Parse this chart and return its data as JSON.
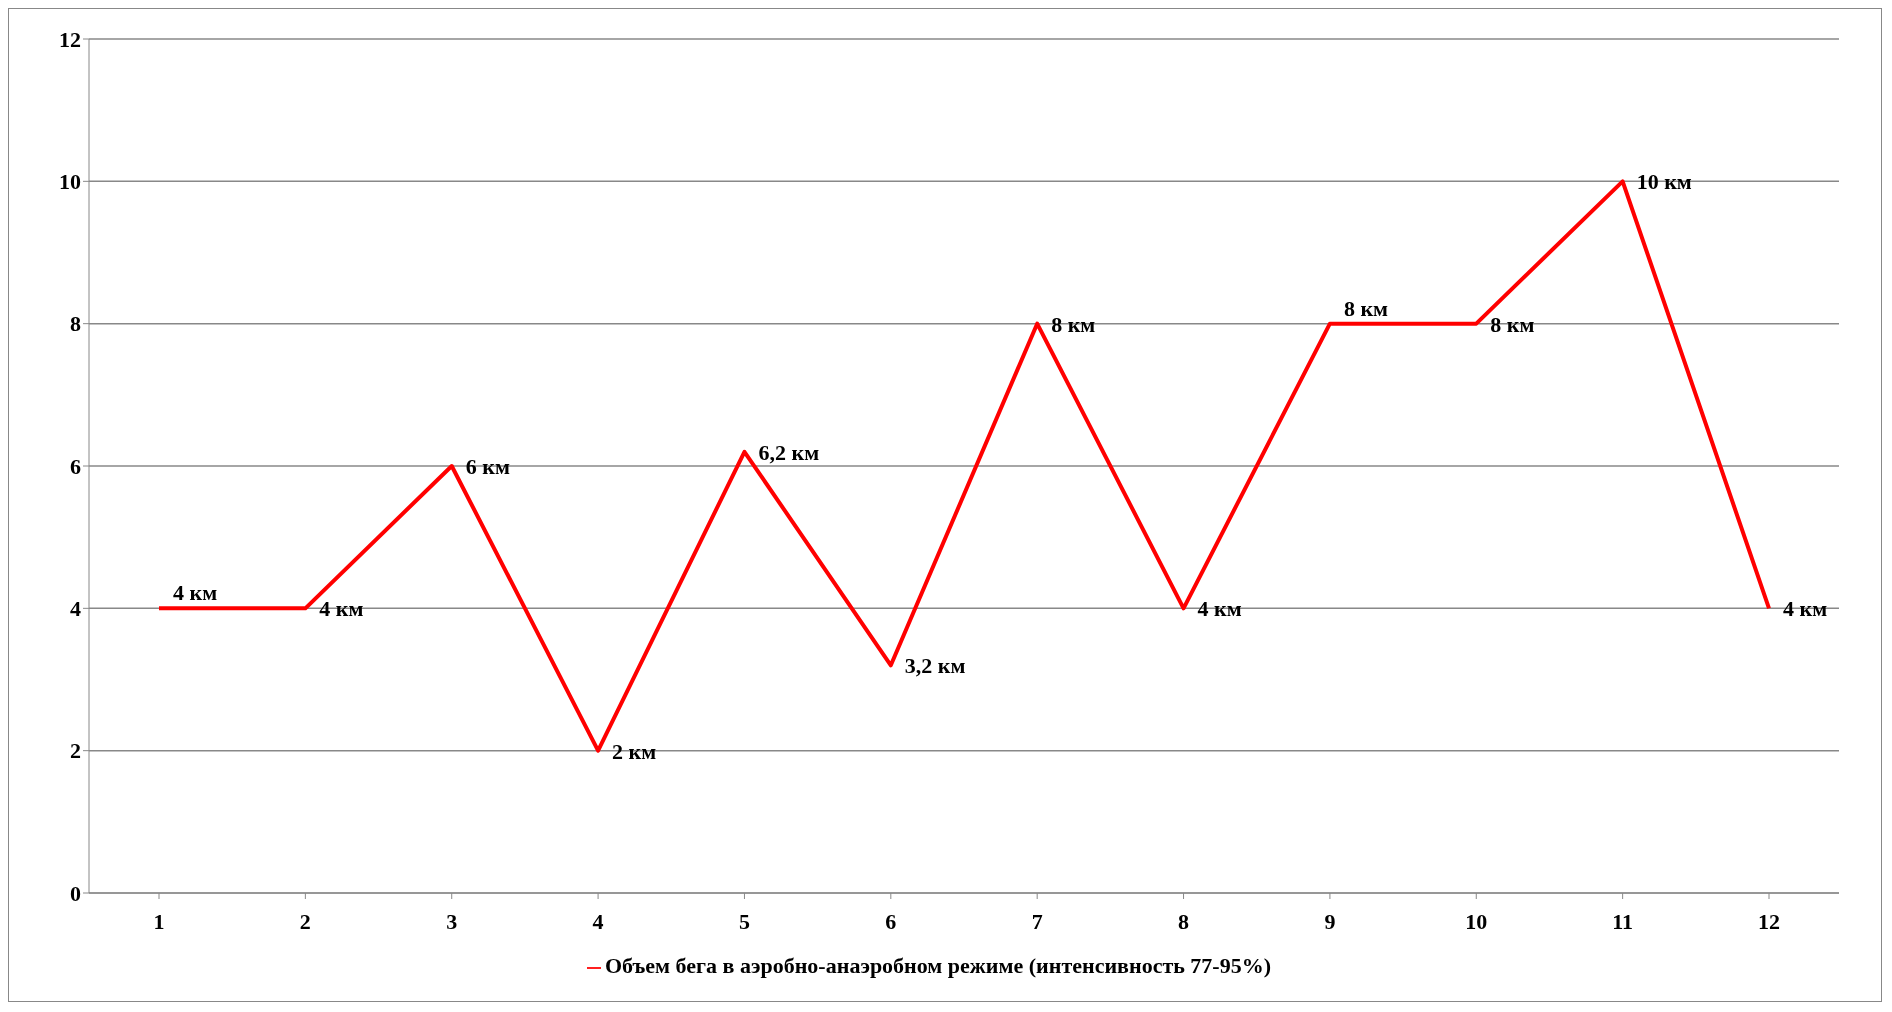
{
  "chart_data": {
    "type": "line",
    "categories": [
      "1",
      "2",
      "3",
      "4",
      "5",
      "6",
      "7",
      "8",
      "9",
      "10",
      "11",
      "12"
    ],
    "series": [
      {
        "name": "Объем бега в аэробно-анаэробном режиме (интенсивность 77-95%)",
        "color": "#ff0000",
        "values": [
          4,
          4,
          6,
          2,
          6.2,
          3.2,
          8,
          4,
          8,
          8,
          10,
          4
        ],
        "value_labels": [
          "4 км",
          "4 км",
          "6 км",
          "2 км",
          "6,2 км",
          "3,2 км",
          "8 км",
          "4 км",
          "8 км",
          "8 км",
          "10 км",
          "4 км"
        ]
      }
    ],
    "ylim": [
      0,
      12
    ],
    "yticks": [
      0,
      2,
      4,
      6,
      8,
      10,
      12
    ],
    "grid": "y",
    "legend": "bottom",
    "marker": "none",
    "line_style": "solid"
  }
}
